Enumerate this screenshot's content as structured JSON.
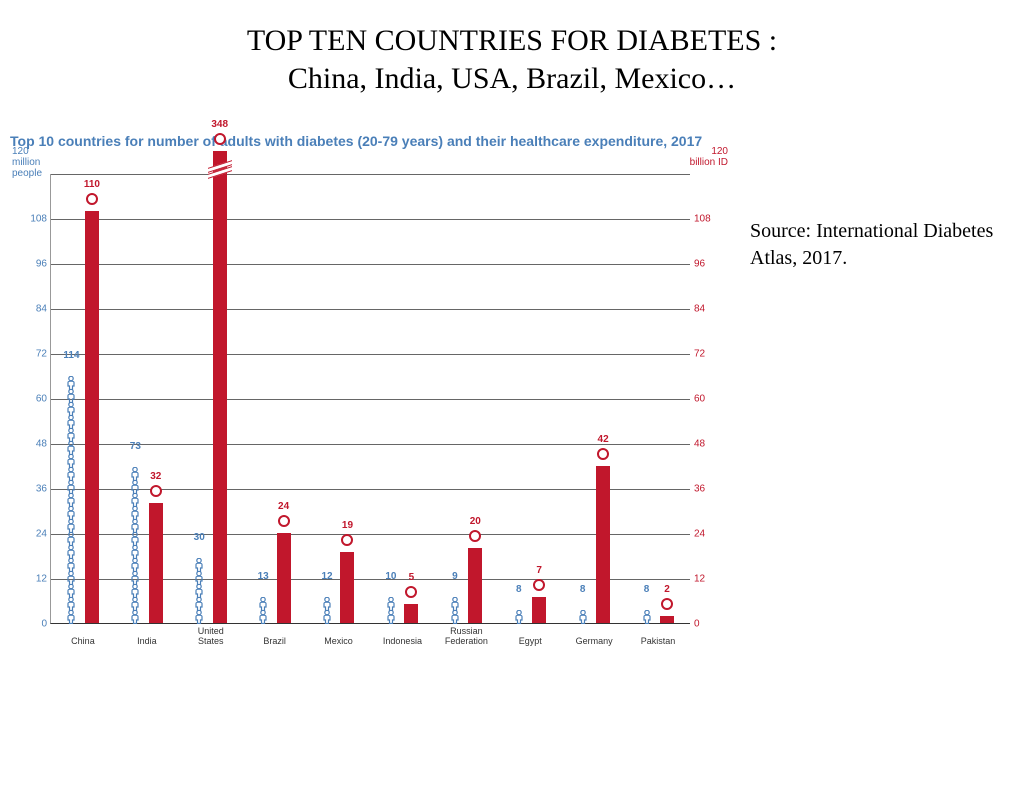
{
  "slide": {
    "title_line1": "TOP TEN COUNTRIES FOR DIABETES :",
    "title_line2": "China, India, USA, Brazil, Mexico…",
    "source": "Source: International Diabetes Atlas, 2017."
  },
  "chart": {
    "type": "grouped-bar",
    "title": "Top 10 countries for number of adults with diabetes (20-79 years) and their healthcare expenditure, 2017",
    "title_color": "#4a7fb8",
    "people_color": "#4a7fb8",
    "cost_color": "#c1172c",
    "grid_color": "#666666",
    "background_color": "#ffffff",
    "left_axis": {
      "label_l1": "120",
      "label_l2": "million",
      "label_l3": "people",
      "max": 120,
      "step": 12,
      "ticks": [
        0,
        12,
        24,
        36,
        48,
        60,
        72,
        84,
        96,
        108
      ]
    },
    "right_axis": {
      "label_l1": "120",
      "label_l2": "billion ID",
      "max": 120,
      "step": 12,
      "ticks": [
        0,
        12,
        24,
        36,
        48,
        60,
        72,
        84,
        96,
        108
      ]
    },
    "categories": [
      "China",
      "India",
      "United\nStates",
      "Brazil",
      "Mexico",
      "Indonesia",
      "Russian\nFederation",
      "Egypt",
      "Germany",
      "Pakistan"
    ],
    "people_values": [
      114,
      73,
      30,
      13,
      12,
      10,
      9,
      8,
      8,
      8
    ],
    "cost_values": [
      110,
      32,
      348,
      24,
      19,
      5,
      20,
      7,
      42,
      2
    ],
    "people_icon_unit": 6,
    "us_bar_display_height": 126,
    "us_break": true
  }
}
